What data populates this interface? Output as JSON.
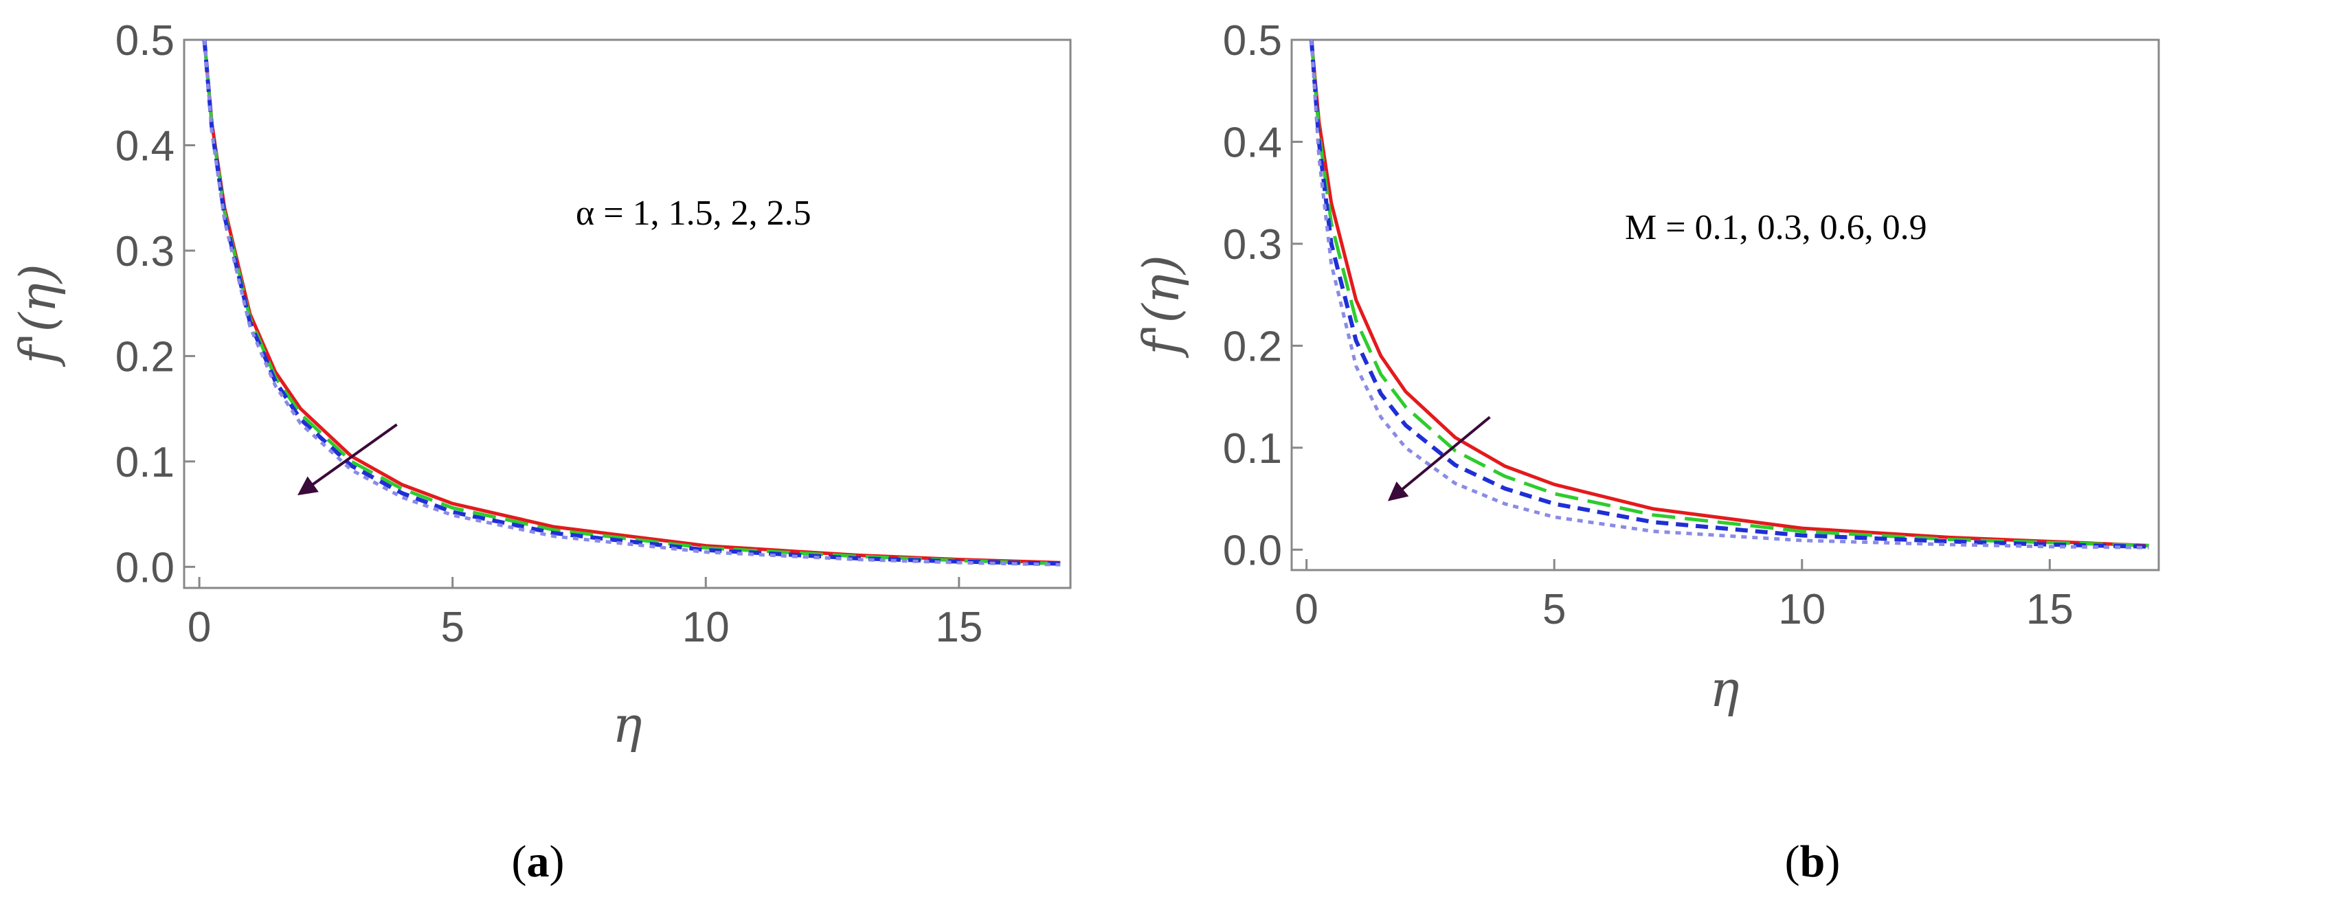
{
  "colors": {
    "red_series": "#e41a1c",
    "green_series": "#2ecc2e",
    "blue_series": "#1f2fd6",
    "lightblue_series": "#8a8ae6",
    "arrow": "#3a0a3a",
    "axis": "#888888",
    "text": "#555555"
  },
  "chart_data": [
    {
      "type": "line",
      "panel_label_open": "(",
      "panel_label": "a",
      "panel_label_close": ")",
      "xlabel": "η",
      "ylabel": "f'(η)",
      "xlim": [
        -0.3,
        17.2
      ],
      "ylim": [
        -0.02,
        0.5
      ],
      "xticks": [
        "0",
        "5",
        "10",
        "15"
      ],
      "yticks": [
        "0.0",
        "0.1",
        "0.2",
        "0.3",
        "0.4",
        "0.5"
      ],
      "annotation": "α = 1, 1.5, 2, 2.5",
      "trend_arrow": {
        "from": [
          3.9,
          0.135
        ],
        "to": [
          2.0,
          0.07
        ],
        "direction": "decreasing"
      },
      "series": [
        {
          "style": "solid",
          "x": [
            0.1,
            0.25,
            0.5,
            1,
            1.5,
            2,
            3,
            4,
            5,
            7,
            10,
            13,
            15,
            17
          ],
          "values": [
            0.5,
            0.42,
            0.34,
            0.24,
            0.185,
            0.15,
            0.105,
            0.078,
            0.06,
            0.038,
            0.02,
            0.011,
            0.007,
            0.004
          ]
        },
        {
          "style": "long-dash",
          "x": [
            0.1,
            0.25,
            0.5,
            1,
            1.5,
            2,
            3,
            4,
            5,
            7,
            10,
            13,
            15,
            17
          ],
          "values": [
            0.5,
            0.418,
            0.336,
            0.236,
            0.18,
            0.145,
            0.1,
            0.074,
            0.056,
            0.035,
            0.018,
            0.01,
            0.006,
            0.003
          ]
        },
        {
          "style": "dash",
          "x": [
            0.1,
            0.25,
            0.5,
            1,
            1.5,
            2,
            3,
            4,
            5,
            7,
            10,
            13,
            15,
            17
          ],
          "values": [
            0.5,
            0.415,
            0.332,
            0.232,
            0.176,
            0.14,
            0.096,
            0.07,
            0.052,
            0.032,
            0.016,
            0.008,
            0.005,
            0.003
          ]
        },
        {
          "style": "dot",
          "x": [
            0.1,
            0.25,
            0.5,
            1,
            1.5,
            2,
            3,
            4,
            5,
            7,
            10,
            13,
            15,
            17
          ],
          "values": [
            0.5,
            0.412,
            0.328,
            0.228,
            0.172,
            0.136,
            0.092,
            0.066,
            0.049,
            0.029,
            0.014,
            0.007,
            0.004,
            0.002
          ]
        }
      ]
    },
    {
      "type": "line",
      "panel_label_open": "(",
      "panel_label": "b",
      "panel_label_close": ")",
      "xlabel": "η",
      "ylabel": "f'(η)",
      "xlim": [
        -0.3,
        17.2
      ],
      "ylim": [
        -0.02,
        0.5
      ],
      "xticks": [
        "0",
        "5",
        "10",
        "15"
      ],
      "yticks": [
        "0.0",
        "0.1",
        "0.2",
        "0.3",
        "0.4",
        "0.5"
      ],
      "annotation": "M = 0.1, 0.3, 0.6, 0.9",
      "trend_arrow": {
        "from": [
          3.7,
          0.13
        ],
        "to": [
          1.7,
          0.05
        ],
        "direction": "decreasing"
      },
      "series": [
        {
          "style": "solid",
          "x": [
            0.1,
            0.25,
            0.5,
            1,
            1.5,
            2,
            3,
            4,
            5,
            7,
            10,
            13,
            15,
            17
          ],
          "values": [
            0.5,
            0.42,
            0.34,
            0.245,
            0.19,
            0.155,
            0.11,
            0.082,
            0.064,
            0.04,
            0.021,
            0.012,
            0.008,
            0.004
          ]
        },
        {
          "style": "long-dash",
          "x": [
            0.1,
            0.25,
            0.5,
            1,
            1.5,
            2,
            3,
            4,
            5,
            7,
            10,
            13,
            15,
            17
          ],
          "values": [
            0.5,
            0.41,
            0.32,
            0.225,
            0.172,
            0.14,
            0.097,
            0.072,
            0.055,
            0.034,
            0.018,
            0.01,
            0.007,
            0.004
          ]
        },
        {
          "style": "dash",
          "x": [
            0.1,
            0.25,
            0.5,
            1,
            1.5,
            2,
            3,
            4,
            5,
            7,
            10,
            13,
            15,
            17
          ],
          "values": [
            0.5,
            0.4,
            0.3,
            0.205,
            0.153,
            0.122,
            0.083,
            0.06,
            0.045,
            0.027,
            0.014,
            0.008,
            0.005,
            0.003
          ]
        },
        {
          "style": "dot",
          "x": [
            0.1,
            0.25,
            0.5,
            1,
            1.5,
            2,
            3,
            4,
            5,
            7,
            10,
            13,
            15,
            17
          ],
          "values": [
            0.5,
            0.385,
            0.28,
            0.18,
            0.13,
            0.1,
            0.065,
            0.045,
            0.032,
            0.018,
            0.009,
            0.005,
            0.003,
            0.002
          ]
        }
      ]
    }
  ]
}
